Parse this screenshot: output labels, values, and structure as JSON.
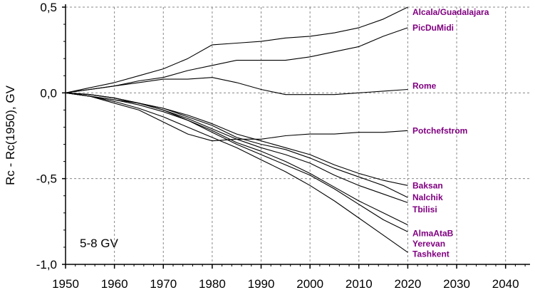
{
  "chart_data": {
    "type": "line",
    "ylabel": "Rc - Rc(1950), GV",
    "xlabel": "",
    "annotation": "5-8 GV",
    "xlim": [
      1950,
      2045
    ],
    "ylim": [
      -1.0,
      0.5
    ],
    "x_ticks": [
      1950,
      1960,
      1970,
      1980,
      1990,
      2000,
      2010,
      2020,
      2030,
      2040
    ],
    "y_ticks": [
      {
        "value": 0.5,
        "label": "0,5"
      },
      {
        "value": 0.0,
        "label": "0,0"
      },
      {
        "value": -0.5,
        "label": "-0,5"
      },
      {
        "value": -1.0,
        "label": "-1,0"
      }
    ],
    "grid": true,
    "label_color": "#800080",
    "line_color": "#000000",
    "series": [
      {
        "name": "Alcala/Guadalajara",
        "x": [
          1950,
          1955,
          1960,
          1965,
          1970,
          1975,
          1980,
          1985,
          1990,
          1995,
          2000,
          2005,
          2010,
          2015,
          2020
        ],
        "y": [
          0.0,
          0.03,
          0.06,
          0.1,
          0.14,
          0.2,
          0.28,
          0.29,
          0.3,
          0.32,
          0.33,
          0.35,
          0.38,
          0.43,
          0.5
        ]
      },
      {
        "name": "PicDuMidi",
        "x": [
          1950,
          1955,
          1960,
          1965,
          1970,
          1975,
          1980,
          1985,
          1990,
          1995,
          2000,
          2005,
          2010,
          2015,
          2020
        ],
        "y": [
          0.0,
          0.02,
          0.04,
          0.07,
          0.09,
          0.13,
          0.16,
          0.19,
          0.19,
          0.19,
          0.21,
          0.24,
          0.27,
          0.33,
          0.38
        ]
      },
      {
        "name": "Rome",
        "x": [
          1950,
          1955,
          1960,
          1965,
          1970,
          1975,
          1980,
          1985,
          1990,
          1995,
          2000,
          2005,
          2010,
          2015,
          2020
        ],
        "y": [
          0.0,
          0.02,
          0.04,
          0.06,
          0.08,
          0.08,
          0.09,
          0.06,
          0.02,
          -0.01,
          -0.01,
          -0.01,
          0.0,
          0.01,
          0.02
        ]
      },
      {
        "name": "Potchefstrom",
        "x": [
          1950,
          1955,
          1960,
          1965,
          1970,
          1975,
          1980,
          1985,
          1990,
          1995,
          2000,
          2005,
          2010,
          2015,
          2020
        ],
        "y": [
          0.0,
          -0.02,
          -0.06,
          -0.1,
          -0.17,
          -0.24,
          -0.28,
          -0.27,
          -0.27,
          -0.25,
          -0.24,
          -0.24,
          -0.23,
          -0.23,
          -0.22
        ]
      },
      {
        "name": "Baksan",
        "x": [
          1950,
          1955,
          1960,
          1965,
          1970,
          1975,
          1980,
          1985,
          1990,
          1995,
          2000,
          2005,
          2010,
          2015,
          2020
        ],
        "y": [
          0.0,
          -0.01,
          -0.03,
          -0.06,
          -0.09,
          -0.13,
          -0.18,
          -0.24,
          -0.28,
          -0.32,
          -0.36,
          -0.42,
          -0.47,
          -0.51,
          -0.54
        ]
      },
      {
        "name": "Nalchik",
        "x": [
          1950,
          1955,
          1960,
          1965,
          1970,
          1975,
          1980,
          1985,
          1990,
          1995,
          2000,
          2005,
          2010,
          2015,
          2020
        ],
        "y": [
          0.0,
          -0.01,
          -0.03,
          -0.06,
          -0.09,
          -0.14,
          -0.19,
          -0.26,
          -0.3,
          -0.33,
          -0.38,
          -0.44,
          -0.49,
          -0.54,
          -0.61
        ]
      },
      {
        "name": "Tbilisi",
        "x": [
          1950,
          1955,
          1960,
          1965,
          1970,
          1975,
          1980,
          1985,
          1990,
          1995,
          2000,
          2005,
          2010,
          2015,
          2020
        ],
        "y": [
          0.0,
          -0.01,
          -0.03,
          -0.06,
          -0.1,
          -0.15,
          -0.21,
          -0.27,
          -0.32,
          -0.36,
          -0.41,
          -0.48,
          -0.54,
          -0.59,
          -0.64
        ]
      },
      {
        "name": "AlmaAtaB",
        "x": [
          1950,
          1955,
          1960,
          1965,
          1970,
          1975,
          1980,
          1985,
          1990,
          1995,
          2000,
          2005,
          2010,
          2015,
          2020
        ],
        "y": [
          0.0,
          -0.02,
          -0.04,
          -0.07,
          -0.11,
          -0.16,
          -0.23,
          -0.3,
          -0.36,
          -0.42,
          -0.48,
          -0.56,
          -0.65,
          -0.74,
          -0.81
        ]
      },
      {
        "name": "Yerevan",
        "x": [
          1950,
          1955,
          1960,
          1965,
          1970,
          1975,
          1980,
          1985,
          1990,
          1995,
          2000,
          2005,
          2010,
          2015,
          2020
        ],
        "y": [
          0.0,
          -0.02,
          -0.04,
          -0.06,
          -0.1,
          -0.16,
          -0.22,
          -0.29,
          -0.34,
          -0.4,
          -0.47,
          -0.55,
          -0.63,
          -0.7,
          -0.77
        ]
      },
      {
        "name": "Tashkent",
        "x": [
          1950,
          1955,
          1960,
          1965,
          1970,
          1975,
          1980,
          1985,
          1990,
          1995,
          2000,
          2005,
          2010,
          2015,
          2020
        ],
        "y": [
          0.0,
          -0.02,
          -0.05,
          -0.09,
          -0.14,
          -0.2,
          -0.26,
          -0.32,
          -0.39,
          -0.46,
          -0.54,
          -0.63,
          -0.73,
          -0.83,
          -0.93
        ]
      }
    ],
    "label_values": [
      0.47,
      0.38,
      0.04,
      -0.22,
      -0.54,
      -0.61,
      -0.68,
      -0.82,
      -0.88,
      -0.94
    ]
  }
}
